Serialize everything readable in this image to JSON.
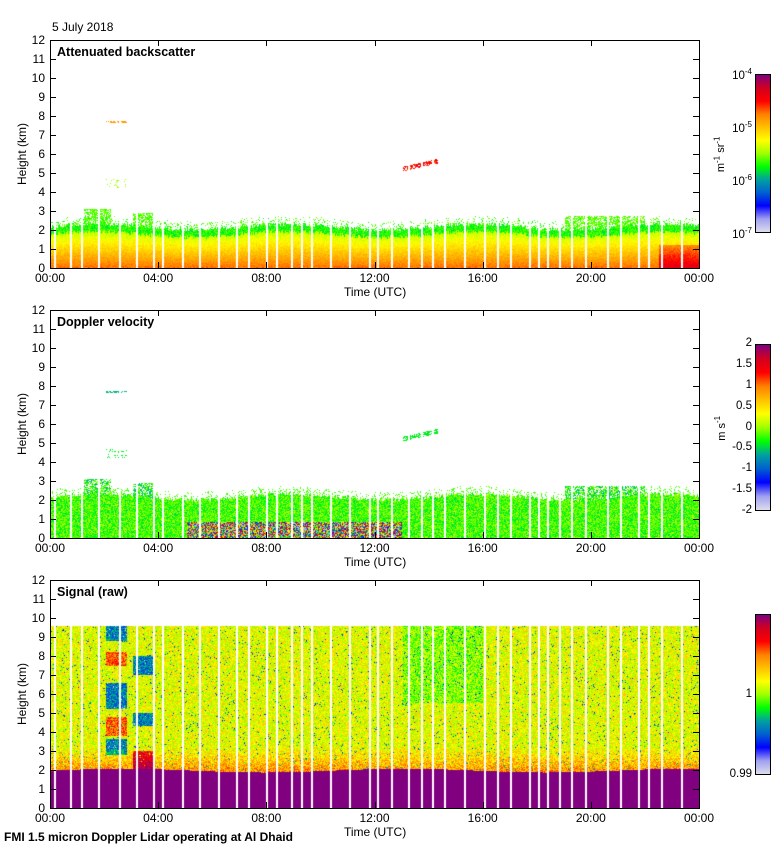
{
  "date_label": "5 July 2018",
  "footer": "FMI 1.5 micron Doppler Lidar operating at Al Dhaid",
  "colors": {
    "colormap": [
      "#dcdcec",
      "#a0a0f0",
      "#0000ff",
      "#0060d0",
      "#00a0a0",
      "#00ff00",
      "#a0ff00",
      "#ffff00",
      "#ffc000",
      "#ff8000",
      "#ff0000",
      "#d00020",
      "#800080"
    ],
    "signal_floor": "#800080"
  },
  "chart_data": [
    {
      "type": "heatmap",
      "title": "Attenuated backscatter",
      "xlabel": "Time (UTC)",
      "ylabel": "Height (km)",
      "xticks": [
        "00:00",
        "04:00",
        "08:00",
        "12:00",
        "16:00",
        "20:00",
        "00:00"
      ],
      "xlim_hours": [
        0,
        24
      ],
      "ylim": [
        0,
        12
      ],
      "yticks": [
        "0",
        "1",
        "2",
        "3",
        "4",
        "5",
        "6",
        "7",
        "8",
        "9",
        "10",
        "11",
        "12"
      ],
      "colorbar": {
        "scale": "log",
        "range": [
          1e-07,
          0.0001
        ],
        "ticks": [
          {
            "base": "10",
            "exp": "-4"
          },
          {
            "base": "10",
            "exp": "-5"
          },
          {
            "base": "10",
            "exp": "-6"
          },
          {
            "base": "10",
            "exp": "-7"
          }
        ],
        "unit_parts": [
          {
            "base": "m",
            "exp": "-1"
          },
          {
            "base": " sr",
            "exp": "-1"
          }
        ]
      },
      "features": {
        "boundary_layer_top_km": 2.1,
        "residual_layer_km": [
          1.5,
          3.2
        ],
        "elevated_layers": [
          {
            "time_h": [
              2.0,
              2.8
            ],
            "height_km": 7.7,
            "note": "orange"
          },
          {
            "time_h": [
              2.0,
              2.8
            ],
            "height_km": [
              4.2,
              4.7
            ],
            "note": "green"
          },
          {
            "time_h": [
              13.0,
              14.3
            ],
            "height_km": [
              5.0,
              5.6
            ],
            "note": "red"
          }
        ]
      }
    },
    {
      "type": "heatmap",
      "title": "Doppler velocity",
      "xlabel": "Time (UTC)",
      "ylabel": "Height (km)",
      "xticks": [
        "00:00",
        "04:00",
        "08:00",
        "12:00",
        "16:00",
        "20:00",
        "00:00"
      ],
      "xlim_hours": [
        0,
        24
      ],
      "ylim": [
        0,
        12
      ],
      "yticks": [
        "0",
        "1",
        "2",
        "3",
        "4",
        "5",
        "6",
        "7",
        "8",
        "9",
        "10",
        "11",
        "12"
      ],
      "colorbar": {
        "scale": "linear",
        "range": [
          -2,
          2
        ],
        "ticks": [
          "2",
          "1.5",
          "1",
          "0.5",
          "0",
          "-0.5",
          "-1",
          "-1.5",
          "-2"
        ],
        "unit_parts": [
          {
            "base": "m s",
            "exp": "-1"
          }
        ]
      }
    },
    {
      "type": "heatmap",
      "title": "Signal (raw)",
      "xlabel": "Time (UTC)",
      "ylabel": "Height (km)",
      "xticks": [
        "00:00",
        "04:00",
        "08:00",
        "12:00",
        "16:00",
        "20:00",
        "00:00"
      ],
      "xlim_hours": [
        0,
        24
      ],
      "ylim": [
        0,
        12
      ],
      "yticks": [
        "0",
        "1",
        "2",
        "3",
        "4",
        "5",
        "6",
        "7",
        "8",
        "9",
        "10",
        "11",
        "12"
      ],
      "data_top_km": 9.6,
      "colorbar": {
        "scale": "linear",
        "range": [
          0.99,
          1.01
        ],
        "ticks": [
          "1",
          "0.99"
        ],
        "unit_parts": []
      }
    }
  ]
}
